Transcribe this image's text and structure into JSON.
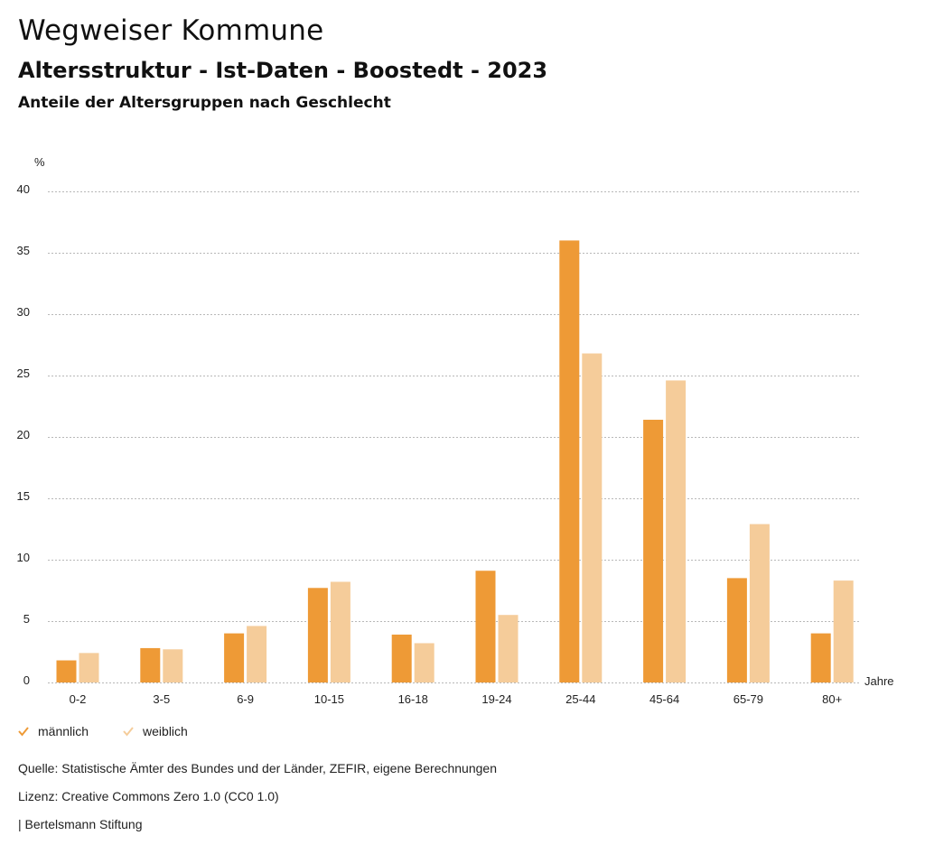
{
  "header": {
    "title": "Wegweiser Kommune",
    "subtitle": "Altersstruktur - Ist-Daten - Boostedt - 2023",
    "description": "Anteile der Altersgruppen nach Geschlecht"
  },
  "chart_data": {
    "type": "bar",
    "title": "Anteile der Altersgruppen nach Geschlecht",
    "xlabel": "Jahre",
    "ylabel": "%",
    "ylim": [
      0,
      40
    ],
    "yticks": [
      0,
      5,
      10,
      15,
      20,
      25,
      30,
      35,
      40
    ],
    "grid": true,
    "legend_position": "bottom-left",
    "categories": [
      "0-2",
      "3-5",
      "6-9",
      "10-15",
      "16-18",
      "19-24",
      "25-44",
      "45-64",
      "65-79",
      "80+"
    ],
    "series": [
      {
        "name": "männlich",
        "color": "#EE9A36",
        "values": [
          1.8,
          2.8,
          4.0,
          7.7,
          3.9,
          9.1,
          36.0,
          21.4,
          8.5,
          4.0
        ]
      },
      {
        "name": "weiblich",
        "color": "#F5CC9A",
        "values": [
          2.4,
          2.7,
          4.6,
          8.2,
          3.2,
          5.5,
          26.8,
          24.6,
          12.9,
          8.3
        ]
      }
    ]
  },
  "legend": {
    "items": [
      {
        "label": "männlich",
        "color": "#EE9A36",
        "icon": "check-icon"
      },
      {
        "label": "weiblich",
        "color": "#F5CC9A",
        "icon": "check-icon"
      }
    ]
  },
  "footer": {
    "source": "Quelle: Statistische Ämter des Bundes und der Länder, ZEFIR, eigene Berechnungen",
    "license": "Lizenz: Creative Commons Zero 1.0 (CC0 1.0)",
    "publisher": "| Bertelsmann Stiftung"
  }
}
